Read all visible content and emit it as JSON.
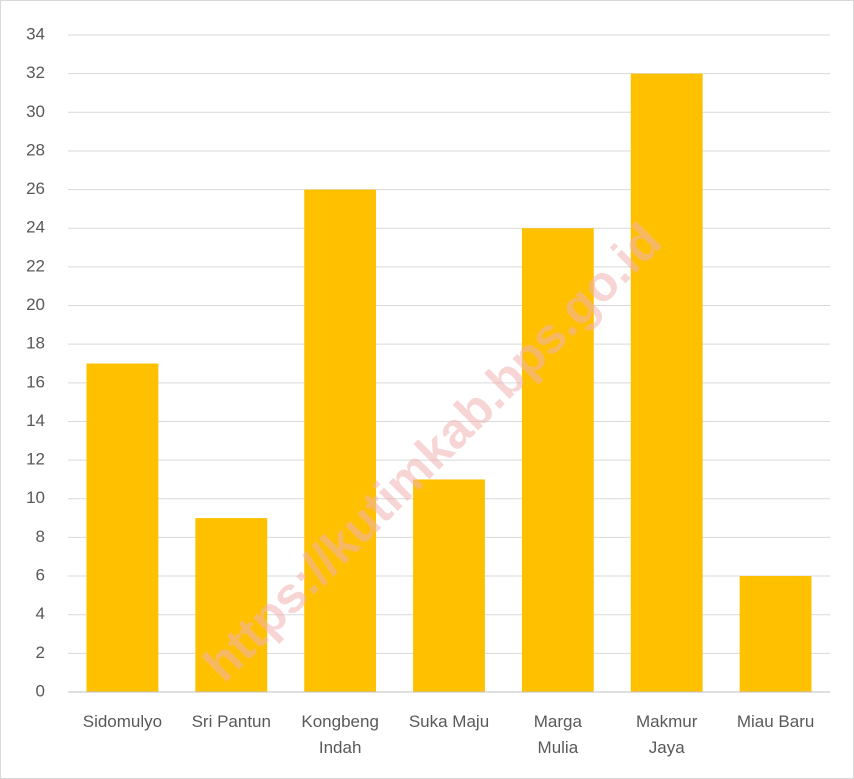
{
  "chart_data": {
    "type": "bar",
    "categories": [
      [
        "Sidomulyo"
      ],
      [
        "Sri Pantun"
      ],
      [
        "Kongbeng",
        "Indah"
      ],
      [
        "Suka Maju"
      ],
      [
        "Marga",
        "Mulia"
      ],
      [
        "Makmur",
        "Jaya"
      ],
      [
        "Miau Baru"
      ]
    ],
    "values": [
      17,
      9,
      26,
      11,
      24,
      32,
      6
    ],
    "ylim": [
      0,
      34
    ],
    "yticks": [
      0,
      2,
      4,
      6,
      8,
      10,
      12,
      14,
      16,
      18,
      20,
      22,
      24,
      26,
      28,
      30,
      32,
      34
    ],
    "grid": true,
    "legend": "none",
    "bar_color": "#FFC000"
  },
  "watermark": "https://kutimkab.bps.go.id"
}
